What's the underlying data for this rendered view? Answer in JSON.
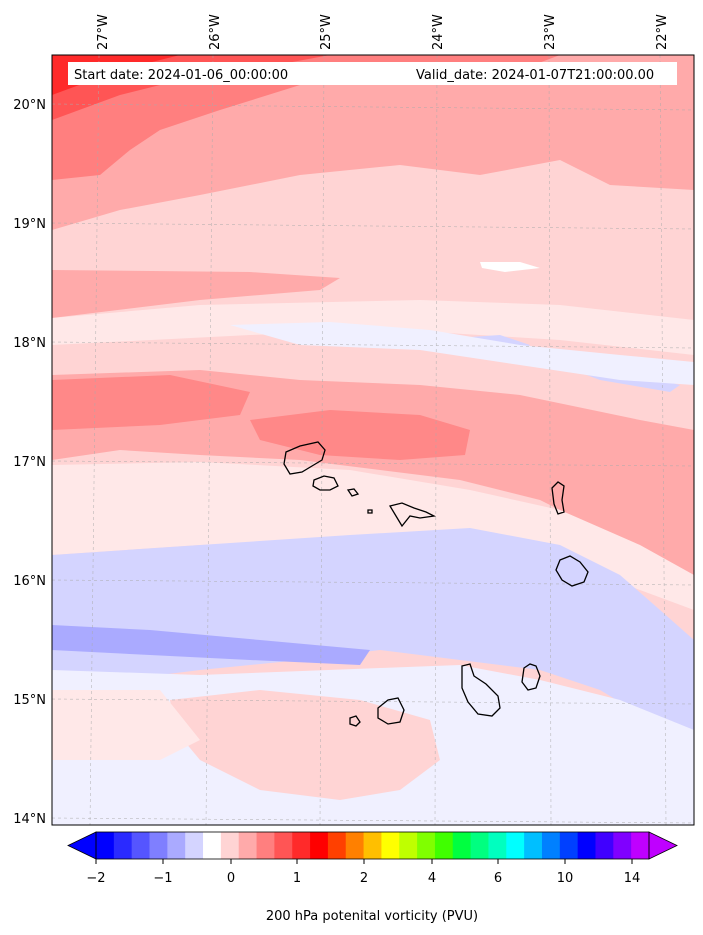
{
  "header": {
    "start_label": "Start date: 2024-01-06_00:00:00",
    "valid_label": "Valid_date: 2024-01-07T21:00:00.00"
  },
  "map": {
    "lon_labels": [
      "27°W",
      "26°W",
      "25°W",
      "24°W",
      "23°W",
      "22°W"
    ],
    "lat_labels": [
      "20°N",
      "19°N",
      "18°N",
      "17°N",
      "16°N",
      "15°N",
      "14°N"
    ],
    "gridlines": "dashed",
    "features": [
      "Cape Verde islands coastline"
    ]
  },
  "colorbar": {
    "label": "200 hPa potenital vorticity (PVU)",
    "ticks": [
      "−2",
      "−1",
      "0",
      "1",
      "2",
      "4",
      "6",
      "10",
      "14"
    ],
    "extend": "both",
    "colors": [
      "#0000ff",
      "#2a2aff",
      "#5555ff",
      "#7f7fff",
      "#aaaaff",
      "#d4d4ff",
      "#ffffff",
      "#ffd4d4",
      "#ffaaaa",
      "#ff7f7f",
      "#ff5555",
      "#ff2a2a",
      "#ff0000",
      "#ff4000",
      "#ff8000",
      "#ffbf00",
      "#ffff00",
      "#bfff00",
      "#80ff00",
      "#40ff00",
      "#00ff40",
      "#00ff80",
      "#00ffbf",
      "#00ffff",
      "#00bfff",
      "#0080ff",
      "#0040ff",
      "#0000ff",
      "#4000ff",
      "#8000ff",
      "#bf00ff"
    ],
    "extend_low_color": "#0000ff",
    "extend_high_color": "#bf00ff"
  }
}
